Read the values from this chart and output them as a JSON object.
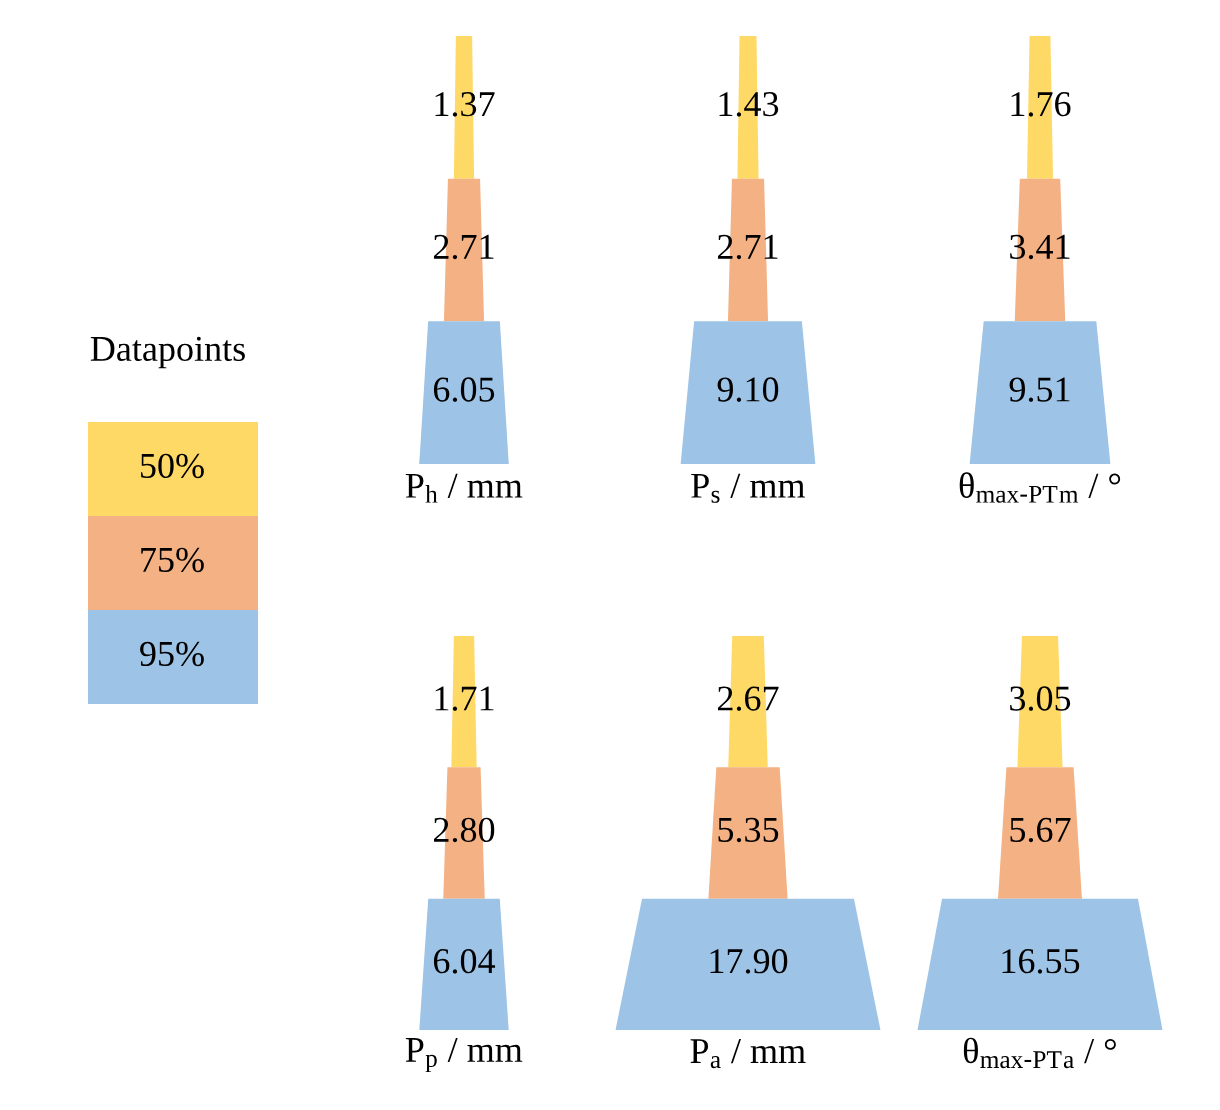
{
  "chart_data": [
    {
      "type": "other",
      "legend_title": "Datapoints",
      "legend": "left",
      "categories": [
        "P$_{h}$ / mm",
        "P$_{s}$ / mm",
        "θ$_{max-PT}$$_{m}$ / °"
      ],
      "series": [
        {
          "name": "50%",
          "color": "#ffd966",
          "values": [
            1.37,
            1.43,
            1.76
          ],
          "value_labels": [
            "1.37",
            "1.43",
            "1.76"
          ]
        },
        {
          "name": "75%",
          "color": "#f4b183",
          "values": [
            2.71,
            2.71,
            3.41
          ],
          "value_labels": [
            "2.71",
            "2.71",
            "3.41"
          ]
        },
        {
          "name": "95%",
          "color": "#9dc3e6",
          "values": [
            6.05,
            9.1,
            9.51
          ],
          "value_labels": [
            "6.05",
            "9.10",
            "9.51"
          ]
        }
      ]
    },
    {
      "type": "other",
      "categories": [
        "P$_{p}$ / mm",
        "P$_{a}$ / mm",
        "θ$_{max-PT}$$_{a}$ / °"
      ],
      "series": [
        {
          "color": "#ffd966",
          "values": [
            1.71,
            2.67,
            3.05
          ],
          "value_labels": [
            "1.71",
            "2.67",
            "3.05"
          ]
        },
        {
          "color": "#f4b183",
          "values": [
            2.8,
            5.35,
            5.67
          ],
          "value_labels": [
            "2.80",
            "5.35",
            "5.67"
          ]
        },
        {
          "color": "#9dc3e6",
          "values": [
            6.04,
            17.9,
            16.55
          ],
          "value_labels": [
            "6.04",
            "17.90",
            "16.55"
          ]
        }
      ]
    }
  ]
}
